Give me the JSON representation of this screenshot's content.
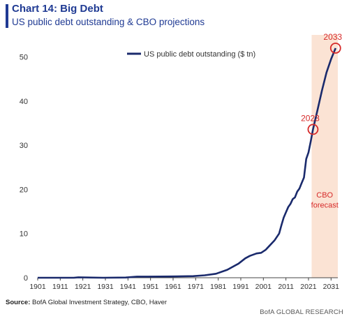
{
  "header": {
    "title": "Chart 14: Big Debt",
    "subtitle": "US public debt outstanding & CBO projections"
  },
  "footer": {
    "source_label": "Source:",
    "source_text": "BofA Global Investment Strategy, CBO, Haver",
    "credit": "BofA GLOBAL RESEARCH"
  },
  "colors": {
    "accent": "#1f3a93",
    "line": "#1a2a6c",
    "highlight": "#d62a2a",
    "forecast_band": "#fbe3d4"
  },
  "chart_data": {
    "type": "line",
    "title": "",
    "xlabel": "",
    "ylabel": "",
    "xlim": [
      1901,
      2034
    ],
    "ylim": [
      0,
      55
    ],
    "x_ticks": [
      1901,
      1911,
      1921,
      1931,
      1941,
      1951,
      1961,
      1971,
      1981,
      1991,
      2001,
      2011,
      2021,
      2031
    ],
    "y_ticks": [
      0,
      10,
      20,
      30,
      40,
      50
    ],
    "grid": false,
    "legend": {
      "position": "top-center",
      "entries": [
        "US public debt outstanding ($ tn)"
      ]
    },
    "series": [
      {
        "name": "US public debt outstanding ($ tn)",
        "x": [
          1901,
          1917,
          1919,
          1930,
          1940,
          1945,
          1950,
          1960,
          1970,
          1975,
          1980,
          1985,
          1990,
          1993,
          1995,
          1998,
          2000,
          2002,
          2004,
          2006,
          2008,
          2009,
          2010,
          2011,
          2012,
          2013,
          2014,
          2015,
          2016,
          2017,
          2018,
          2019,
          2020,
          2021,
          2022,
          2023,
          2025,
          2027,
          2029,
          2031,
          2033
        ],
        "y": [
          0.0,
          0.0,
          0.1,
          0.0,
          0.05,
          0.26,
          0.26,
          0.29,
          0.37,
          0.55,
          0.9,
          1.8,
          3.2,
          4.4,
          4.95,
          5.5,
          5.65,
          6.3,
          7.4,
          8.5,
          10.0,
          11.9,
          13.6,
          14.8,
          16.0,
          16.7,
          17.8,
          18.2,
          19.5,
          20.2,
          21.5,
          22.7,
          26.9,
          28.4,
          30.9,
          33.6,
          38.0,
          42.5,
          46.5,
          49.5,
          52.0
        ]
      }
    ],
    "forecast_region": {
      "x_start": 2023,
      "x_end": 2034,
      "label": [
        "CBO",
        "forecast"
      ]
    },
    "annotations": [
      {
        "label": "2023",
        "x": 2023,
        "y": 33.6
      },
      {
        "label": "2033",
        "x": 2033,
        "y": 52.0
      }
    ]
  }
}
